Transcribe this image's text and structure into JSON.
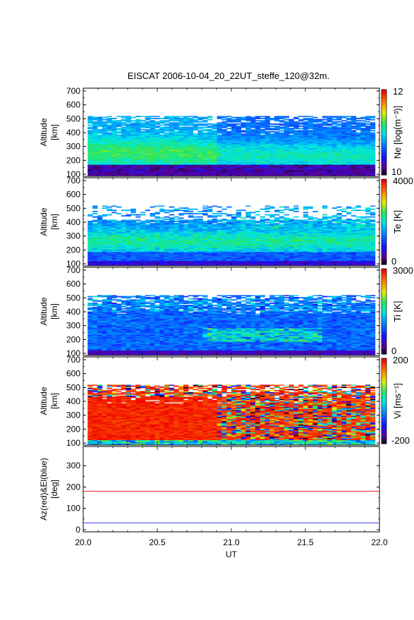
{
  "title": "EISCAT 2006-10-04_20_22UT_steffe_120@32m.",
  "chart_data": [
    {
      "type": "heatmap",
      "panel": "Ne",
      "ylabel": [
        "Altitude",
        "[km]"
      ],
      "yticks": [
        100,
        200,
        300,
        400,
        500,
        600,
        700
      ],
      "ylim": [
        85,
        720
      ],
      "x_range": [
        20.0,
        22.0
      ],
      "data_top_km": 520,
      "colorbar": {
        "label": "Ne [log(m⁻³)]",
        "min_label": "10",
        "max_label": "12",
        "min": 10,
        "max": 12
      },
      "profile_desc": "dense layer 220-300 km (green), lower dark E-region, blue above"
    },
    {
      "type": "heatmap",
      "panel": "Te",
      "ylabel": [
        "Altitude",
        "[km]"
      ],
      "yticks": [
        100,
        200,
        300,
        400,
        500,
        600,
        700
      ],
      "ylim": [
        85,
        720
      ],
      "x_range": [
        20.0,
        22.0
      ],
      "data_top_km": 520,
      "colorbar": {
        "label": "Te [K]",
        "min_label": "0",
        "max_label": "4000",
        "min": 0,
        "max": 4000
      }
    },
    {
      "type": "heatmap",
      "panel": "Ti",
      "ylabel": [
        "Altitude",
        "[km]"
      ],
      "yticks": [
        100,
        200,
        300,
        400,
        500,
        600,
        700
      ],
      "ylim": [
        85,
        720
      ],
      "x_range": [
        20.0,
        22.0
      ],
      "data_top_km": 520,
      "colorbar": {
        "label": "Ti [K]",
        "min_label": "0",
        "max_label": "3000",
        "min": 0,
        "max": 3000
      }
    },
    {
      "type": "heatmap",
      "panel": "Vi",
      "ylabel": [
        "Altitude",
        "[km]"
      ],
      "yticks": [
        100,
        200,
        300,
        400,
        500,
        600,
        700
      ],
      "ylim": [
        85,
        720
      ],
      "x_range": [
        20.0,
        22.0
      ],
      "data_top_km": 520,
      "colorbar": {
        "label": "Vi [ms⁻¹]",
        "min_label": "-200",
        "max_label": "200",
        "min": -200,
        "max": 200
      }
    },
    {
      "type": "line",
      "panel": "AzEl",
      "ylabel": [
        "Az(red)&El(blue)",
        "[deg]"
      ],
      "yticks": [
        0,
        100,
        200,
        300
      ],
      "ylim": [
        -10,
        390
      ],
      "xlabel": "UT",
      "xticks": [
        "20.0",
        "20.5",
        "21.0",
        "21.5",
        "22.0"
      ],
      "x_range": [
        20.0,
        22.0
      ],
      "series": [
        {
          "color": "#ff2020",
          "x": [
            20.0,
            22.0
          ],
          "y": [
            180,
            180
          ]
        },
        {
          "color": "#4040ff",
          "x": [
            20.0,
            22.0
          ],
          "y": [
            32,
            32
          ]
        }
      ]
    }
  ]
}
